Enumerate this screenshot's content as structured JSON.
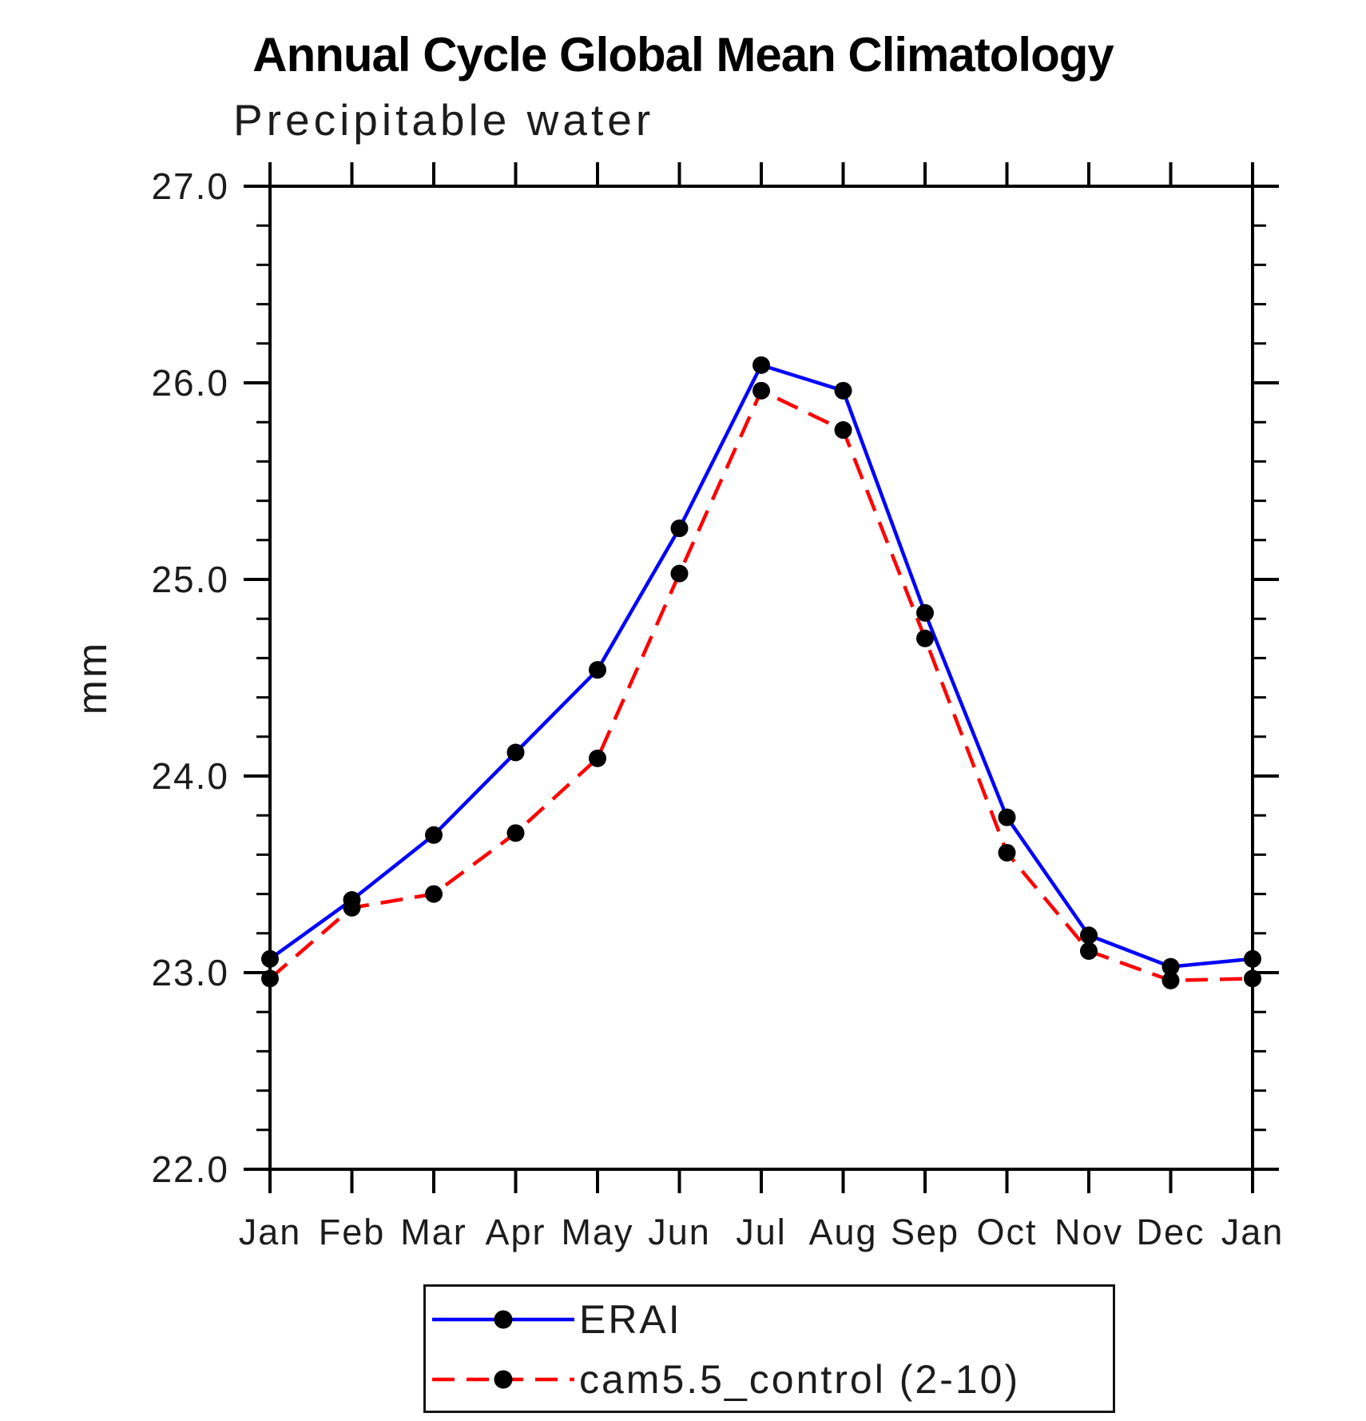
{
  "page": {
    "title": "Annual Cycle Global Mean Climatology",
    "subtitle": "Precipitable water"
  },
  "chart_data": {
    "type": "line",
    "title": "Annual Cycle Global Mean Climatology",
    "subtitle": "Precipitable water",
    "xlabel": "",
    "ylabel": "mm",
    "ylim": [
      22.0,
      27.0
    ],
    "ytick_major_step": 1.0,
    "ytick_minor_step": 0.2,
    "ytick_labels": [
      "22.0",
      "23.0",
      "24.0",
      "25.0",
      "26.0",
      "27.0"
    ],
    "categories": [
      "Jan",
      "Feb",
      "Mar",
      "Apr",
      "May",
      "Jun",
      "Jul",
      "Aug",
      "Sep",
      "Oct",
      "Nov",
      "Dec",
      "Jan"
    ],
    "grid": false,
    "legend_position": "bottom",
    "frame_color": "#000000",
    "marker_color": "#000000",
    "series": [
      {
        "name": "ERAI",
        "color": "#0000ff",
        "style": "solid",
        "marker": "circle",
        "values": [
          23.07,
          23.37,
          23.7,
          24.12,
          24.54,
          25.26,
          26.09,
          25.96,
          24.83,
          23.79,
          23.19,
          23.03,
          23.07
        ]
      },
      {
        "name": "cam5.5_control (2-10)",
        "color": "#ff0000",
        "style": "dashed",
        "marker": "circle",
        "values": [
          22.97,
          23.33,
          23.4,
          23.71,
          24.09,
          25.03,
          25.96,
          25.76,
          24.7,
          23.61,
          23.11,
          22.96,
          22.97
        ]
      }
    ]
  }
}
